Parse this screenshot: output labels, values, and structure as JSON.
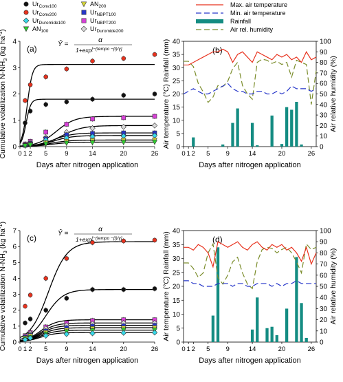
{
  "legend_left": [
    {
      "label": "Ur",
      "sub": "Conv100",
      "marker": "circle",
      "color": "#111111"
    },
    {
      "label": "Ur",
      "sub": "Conv200",
      "marker": "circle",
      "color": "#e8321e"
    },
    {
      "label": "Ur",
      "sub": "Duromide100",
      "marker": "diamond",
      "color": "#38d8e8"
    },
    {
      "label": "AN",
      "sub": "100",
      "marker": "triangle-down",
      "color": "#2fd12f"
    },
    {
      "label": "AN",
      "sub": "200",
      "marker": "triangle-down",
      "color": "#d8d83a"
    },
    {
      "label": "Ur",
      "sub": "NBPT100",
      "marker": "square",
      "color": "#2636c9"
    },
    {
      "label": "Ur",
      "sub": "NBPT200",
      "marker": "square",
      "color": "#d640d6"
    },
    {
      "label": "Ur",
      "sub": "Duromide200",
      "marker": "diamond",
      "color": "#d9d9d9"
    }
  ],
  "legend_right": [
    {
      "label": "Max. air temperature",
      "style": "solid-line",
      "color": "#e8321e"
    },
    {
      "label": "Min. air temperature",
      "style": "dashed-line",
      "color": "#2636c9"
    },
    {
      "label": "Rainfall",
      "style": "bar",
      "color": "#148c82"
    },
    {
      "label": "Air rel. humidity",
      "style": "dashed-line",
      "color": "#7a8c2a"
    }
  ],
  "chart_data": [
    {
      "type": "scatter",
      "panel": "(a)",
      "equation": {
        "lhs": "Ŷ =",
        "num": "α",
        "den": "1+exp",
        "exp": "[−(tempo −β)/γ]"
      },
      "ylabel_main": "Cumulative volatilization N-NH",
      "ylabel_sub": "3",
      "ylabel_unit": " (kg ha",
      "ylabel_sup": "-1",
      "ylabel_close": ")",
      "xlabel": "Days after nitrogen application",
      "xlim": [
        0,
        26
      ],
      "ylim": [
        0,
        4
      ],
      "xticks": [
        0,
        1,
        2,
        5,
        9,
        14,
        20,
        26
      ],
      "yticks": [
        0,
        1,
        2,
        3,
        4
      ],
      "series": [
        {
          "color": "#111111",
          "marker": "circle",
          "x": [
            1,
            2,
            5,
            9,
            14,
            20,
            26
          ],
          "y": [
            0.9,
            1.35,
            1.6,
            1.7,
            1.8,
            1.95,
            2.0
          ],
          "fit": {
            "a": 1.8,
            "b": 1.2,
            "g": 0.45
          }
        },
        {
          "color": "#e8321e",
          "marker": "circle",
          "x": [
            1,
            2,
            5,
            9,
            14,
            20,
            26
          ],
          "y": [
            1.75,
            2.35,
            2.65,
            2.95,
            3.25,
            3.35,
            3.5
          ],
          "fit": {
            "a": 3.12,
            "b": 1.4,
            "g": 0.5
          }
        },
        {
          "color": "#d640d6",
          "marker": "square",
          "x": [
            1,
            2,
            5,
            9,
            14,
            20,
            26
          ],
          "y": [
            0.1,
            0.2,
            0.55,
            0.85,
            1.05,
            1.1,
            1.15
          ],
          "fit": {
            "a": 1.15,
            "b": 7.0,
            "g": 1.8
          }
        },
        {
          "color": "#d9d9d9",
          "marker": "diamond",
          "x": [
            1,
            2,
            5,
            9,
            14,
            20,
            26
          ],
          "y": [
            0.08,
            0.15,
            0.35,
            0.55,
            0.7,
            0.75,
            0.8
          ],
          "fit": {
            "a": 0.8,
            "b": 8.0,
            "g": 2.0
          }
        },
        {
          "color": "#2636c9",
          "marker": "square",
          "x": [
            1,
            2,
            5,
            9,
            14,
            20,
            26
          ],
          "y": [
            0.05,
            0.12,
            0.3,
            0.45,
            0.5,
            0.52,
            0.52
          ],
          "fit": {
            "a": 0.52,
            "b": 6.5,
            "g": 1.8
          }
        },
        {
          "color": "#38d8e8",
          "marker": "diamond",
          "x": [
            1,
            2,
            5,
            9,
            14,
            20,
            26
          ],
          "y": [
            0.05,
            0.1,
            0.25,
            0.33,
            0.38,
            0.4,
            0.42
          ],
          "fit": {
            "a": 0.42,
            "b": 6.5,
            "g": 1.8
          }
        },
        {
          "color": "#d8d83a",
          "marker": "triangle-down",
          "x": [
            1,
            2,
            5,
            9,
            14,
            20,
            26
          ],
          "y": [
            0.04,
            0.08,
            0.15,
            0.2,
            0.23,
            0.24,
            0.25
          ],
          "fit": {
            "a": 0.25,
            "b": 6.0,
            "g": 1.8
          }
        },
        {
          "color": "#2fd12f",
          "marker": "triangle-down",
          "x": [
            1,
            2,
            5,
            9,
            14,
            20,
            26
          ],
          "y": [
            0.03,
            0.06,
            0.1,
            0.13,
            0.15,
            0.16,
            0.17
          ],
          "fit": {
            "a": 0.17,
            "b": 6.0,
            "g": 1.8
          }
        }
      ]
    },
    {
      "type": "bar",
      "panel": "(b)",
      "ylabel": "Air temperature (°C) Rainfall (mm)",
      "ylabel2": "Air relative humidity (%)",
      "xlabel": "Days after nitrogen application",
      "xlim": [
        0,
        27
      ],
      "ylim": [
        0,
        40
      ],
      "y2lim": [
        0,
        100
      ],
      "xticks": [
        0,
        1,
        2,
        5,
        9,
        14,
        20,
        26
      ],
      "yticks": [
        0,
        5,
        10,
        15,
        20,
        25,
        30,
        35,
        40
      ],
      "y2ticks": [
        0,
        10,
        20,
        30,
        40,
        50,
        60,
        70,
        80,
        90,
        100
      ],
      "rainfall": {
        "x": [
          2,
          8,
          10,
          11,
          14,
          15,
          18,
          20,
          21,
          22,
          23,
          24
        ],
        "y": [
          3.5,
          0.8,
          9.0,
          14.5,
          9.0,
          0.5,
          11.8,
          1.0,
          15.0,
          14.0,
          17.0,
          0.8
        ]
      },
      "max_temp": {
        "x": [
          0,
          1,
          2,
          3,
          4,
          5,
          6,
          7,
          8,
          9,
          10,
          11,
          12,
          13,
          14,
          15,
          16,
          17,
          18,
          19,
          20,
          21,
          22,
          23,
          24,
          25,
          26,
          27
        ],
        "y": [
          31,
          31,
          32,
          33,
          34,
          35,
          36,
          36,
          37,
          36,
          32,
          35,
          36,
          34,
          32,
          36,
          35,
          34,
          33,
          35,
          34,
          35,
          33,
          34,
          32,
          36,
          33,
          34
        ]
      },
      "min_temp": {
        "x": [
          0,
          1,
          2,
          3,
          4,
          5,
          6,
          7,
          8,
          9,
          10,
          11,
          12,
          13,
          14,
          15,
          16,
          17,
          18,
          19,
          20,
          21,
          22,
          23,
          24,
          25,
          26,
          27
        ],
        "y": [
          20,
          21,
          22,
          21,
          20,
          20,
          21,
          22,
          23,
          24,
          22,
          21,
          21,
          20,
          20,
          21,
          21,
          20,
          20,
          21,
          20,
          21,
          23,
          22,
          22,
          22,
          21,
          22
        ]
      },
      "humidity": {
        "x": [
          0,
          1,
          2,
          3,
          4,
          5,
          6,
          7,
          8,
          9,
          10,
          11,
          12,
          13,
          14,
          15,
          16,
          17,
          18,
          19,
          20,
          21,
          22,
          23,
          24,
          25,
          26,
          27
        ],
        "y": [
          81,
          81,
          76,
          60,
          52,
          42,
          47,
          58,
          57,
          62,
          74,
          80,
          58,
          50,
          45,
          80,
          83,
          82,
          79,
          81,
          78,
          80,
          66,
          82,
          80,
          78,
          40,
          72
        ]
      }
    },
    {
      "type": "scatter",
      "panel": "(c)",
      "equation": {
        "lhs": "Ŷ =",
        "num": "α",
        "den": "1+exp",
        "exp": "[−(tempo −β)/γ]"
      },
      "ylabel_main": "Cumulative volatilization N-NH",
      "ylabel_sub": "3",
      "ylabel_unit": " (kg ha",
      "ylabel_sup": "-1",
      "ylabel_close": ")",
      "xlabel": "Days after nitrogen application",
      "xlim": [
        0,
        26
      ],
      "ylim": [
        0,
        7
      ],
      "xticks": [
        0,
        1,
        2,
        5,
        9,
        14,
        20,
        26
      ],
      "yticks": [
        0,
        1,
        2,
        3,
        4,
        5,
        6,
        7
      ],
      "series": [
        {
          "color": "#e8321e",
          "marker": "circle",
          "x": [
            1,
            2,
            5,
            9,
            14,
            20,
            26
          ],
          "y": [
            2.25,
            2.95,
            4.0,
            5.25,
            6.25,
            6.35,
            6.4
          ],
          "fit": {
            "a": 6.3,
            "b": 5.5,
            "g": 1.8
          }
        },
        {
          "color": "#111111",
          "marker": "circle",
          "x": [
            1,
            2,
            5,
            9,
            14,
            20,
            26
          ],
          "y": [
            1.2,
            1.45,
            2.0,
            2.75,
            3.3,
            3.3,
            3.35
          ],
          "fit": {
            "a": 3.3,
            "b": 5.0,
            "g": 1.7
          }
        },
        {
          "color": "#d640d6",
          "marker": "square",
          "x": [
            1,
            2,
            5,
            9,
            14,
            20,
            26
          ],
          "y": [
            0.4,
            0.6,
            0.95,
            1.2,
            1.35,
            1.4,
            1.4
          ],
          "fit": {
            "a": 1.4,
            "b": 4.0,
            "g": 1.5
          }
        },
        {
          "color": "#d9d9d9",
          "marker": "diamond",
          "x": [
            1,
            2,
            5,
            9,
            14,
            20,
            26
          ],
          "y": [
            0.35,
            0.55,
            0.85,
            1.05,
            1.15,
            1.2,
            1.2
          ],
          "fit": {
            "a": 1.2,
            "b": 4.0,
            "g": 1.5
          }
        },
        {
          "color": "#2636c9",
          "marker": "square",
          "x": [
            1,
            2,
            5,
            9,
            14,
            20,
            26
          ],
          "y": [
            0.3,
            0.45,
            0.7,
            0.9,
            1.0,
            1.02,
            1.05
          ],
          "fit": {
            "a": 1.05,
            "b": 4.0,
            "g": 1.5
          }
        },
        {
          "color": "#d8d83a",
          "marker": "triangle-down",
          "x": [
            1,
            2,
            5,
            9,
            14,
            20,
            26
          ],
          "y": [
            0.25,
            0.4,
            0.6,
            0.75,
            0.85,
            0.88,
            0.9
          ],
          "fit": {
            "a": 0.9,
            "b": 4.0,
            "g": 1.5
          }
        },
        {
          "color": "#2fd12f",
          "marker": "triangle-down",
          "x": [
            1,
            2,
            5,
            9,
            14,
            20,
            26
          ],
          "y": [
            0.2,
            0.3,
            0.5,
            0.65,
            0.72,
            0.75,
            0.75
          ],
          "fit": {
            "a": 0.75,
            "b": 4.0,
            "g": 1.5
          }
        },
        {
          "color": "#38d8e8",
          "marker": "diamond",
          "x": [
            1,
            2,
            5,
            9,
            14,
            20,
            26
          ],
          "y": [
            0.15,
            0.25,
            0.4,
            0.5,
            0.55,
            0.58,
            0.6
          ],
          "fit": {
            "a": 0.6,
            "b": 4.0,
            "g": 1.5
          }
        }
      ]
    },
    {
      "type": "bar",
      "panel": "(d)",
      "ylabel": "Air temperature (°C) Rainfall (mm)",
      "ylabel2": "Air relative humidity (%)",
      "xlabel": "Days after nitrogen application",
      "xlim": [
        0,
        27
      ],
      "ylim": [
        0,
        40
      ],
      "y2lim": [
        0,
        100
      ],
      "xticks": [
        0,
        1,
        2,
        5,
        9,
        14,
        20,
        26
      ],
      "yticks": [
        0,
        5,
        10,
        15,
        20,
        25,
        30,
        35,
        40
      ],
      "y2ticks": [
        0,
        10,
        20,
        30,
        40,
        50,
        60,
        70,
        80,
        90,
        100
      ],
      "rainfall": {
        "x": [
          6,
          7,
          14,
          15,
          17,
          18,
          19,
          21,
          23,
          24,
          25
        ],
        "y": [
          9.5,
          34.0,
          4.5,
          16.0,
          5.0,
          5.5,
          2.5,
          12.0,
          30.5,
          14.0,
          1.5
        ]
      },
      "max_temp": {
        "x": [
          0,
          1,
          2,
          3,
          4,
          5,
          6,
          7,
          8,
          9,
          10,
          11,
          12,
          13,
          14,
          15,
          16,
          17,
          18,
          19,
          20,
          21,
          22,
          23,
          24,
          25,
          26,
          27
        ],
        "y": [
          34,
          34,
          33,
          35,
          34,
          32,
          27,
          36,
          35,
          34,
          35,
          36,
          34,
          33,
          35,
          36,
          34,
          33,
          35,
          34,
          35,
          33,
          34,
          32,
          29,
          34,
          28,
          32
        ]
      },
      "min_temp": {
        "x": [
          0,
          1,
          2,
          3,
          4,
          5,
          6,
          7,
          8,
          9,
          10,
          11,
          12,
          13,
          14,
          15,
          16,
          17,
          18,
          19,
          20,
          21,
          22,
          23,
          24,
          25,
          26,
          27
        ],
        "y": [
          22,
          22,
          21,
          21,
          20,
          20,
          20,
          21,
          21,
          21,
          20,
          21,
          21,
          20,
          20,
          21,
          21,
          21,
          20,
          21,
          20,
          21,
          21,
          22,
          21,
          21,
          21,
          21
        ]
      },
      "humidity": {
        "x": [
          0,
          1,
          2,
          3,
          4,
          5,
          6,
          7,
          8,
          9,
          10,
          11,
          12,
          13,
          14,
          15,
          16,
          17,
          18,
          19,
          20,
          21,
          22,
          23,
          24,
          25,
          26,
          27
        ],
        "y": [
          71,
          71,
          66,
          58,
          62,
          80,
          88,
          58,
          52,
          60,
          72,
          76,
          62,
          52,
          48,
          72,
          83,
          85,
          84,
          80,
          83,
          85,
          80,
          72,
          62,
          88,
          83,
          85
        ]
      }
    }
  ]
}
